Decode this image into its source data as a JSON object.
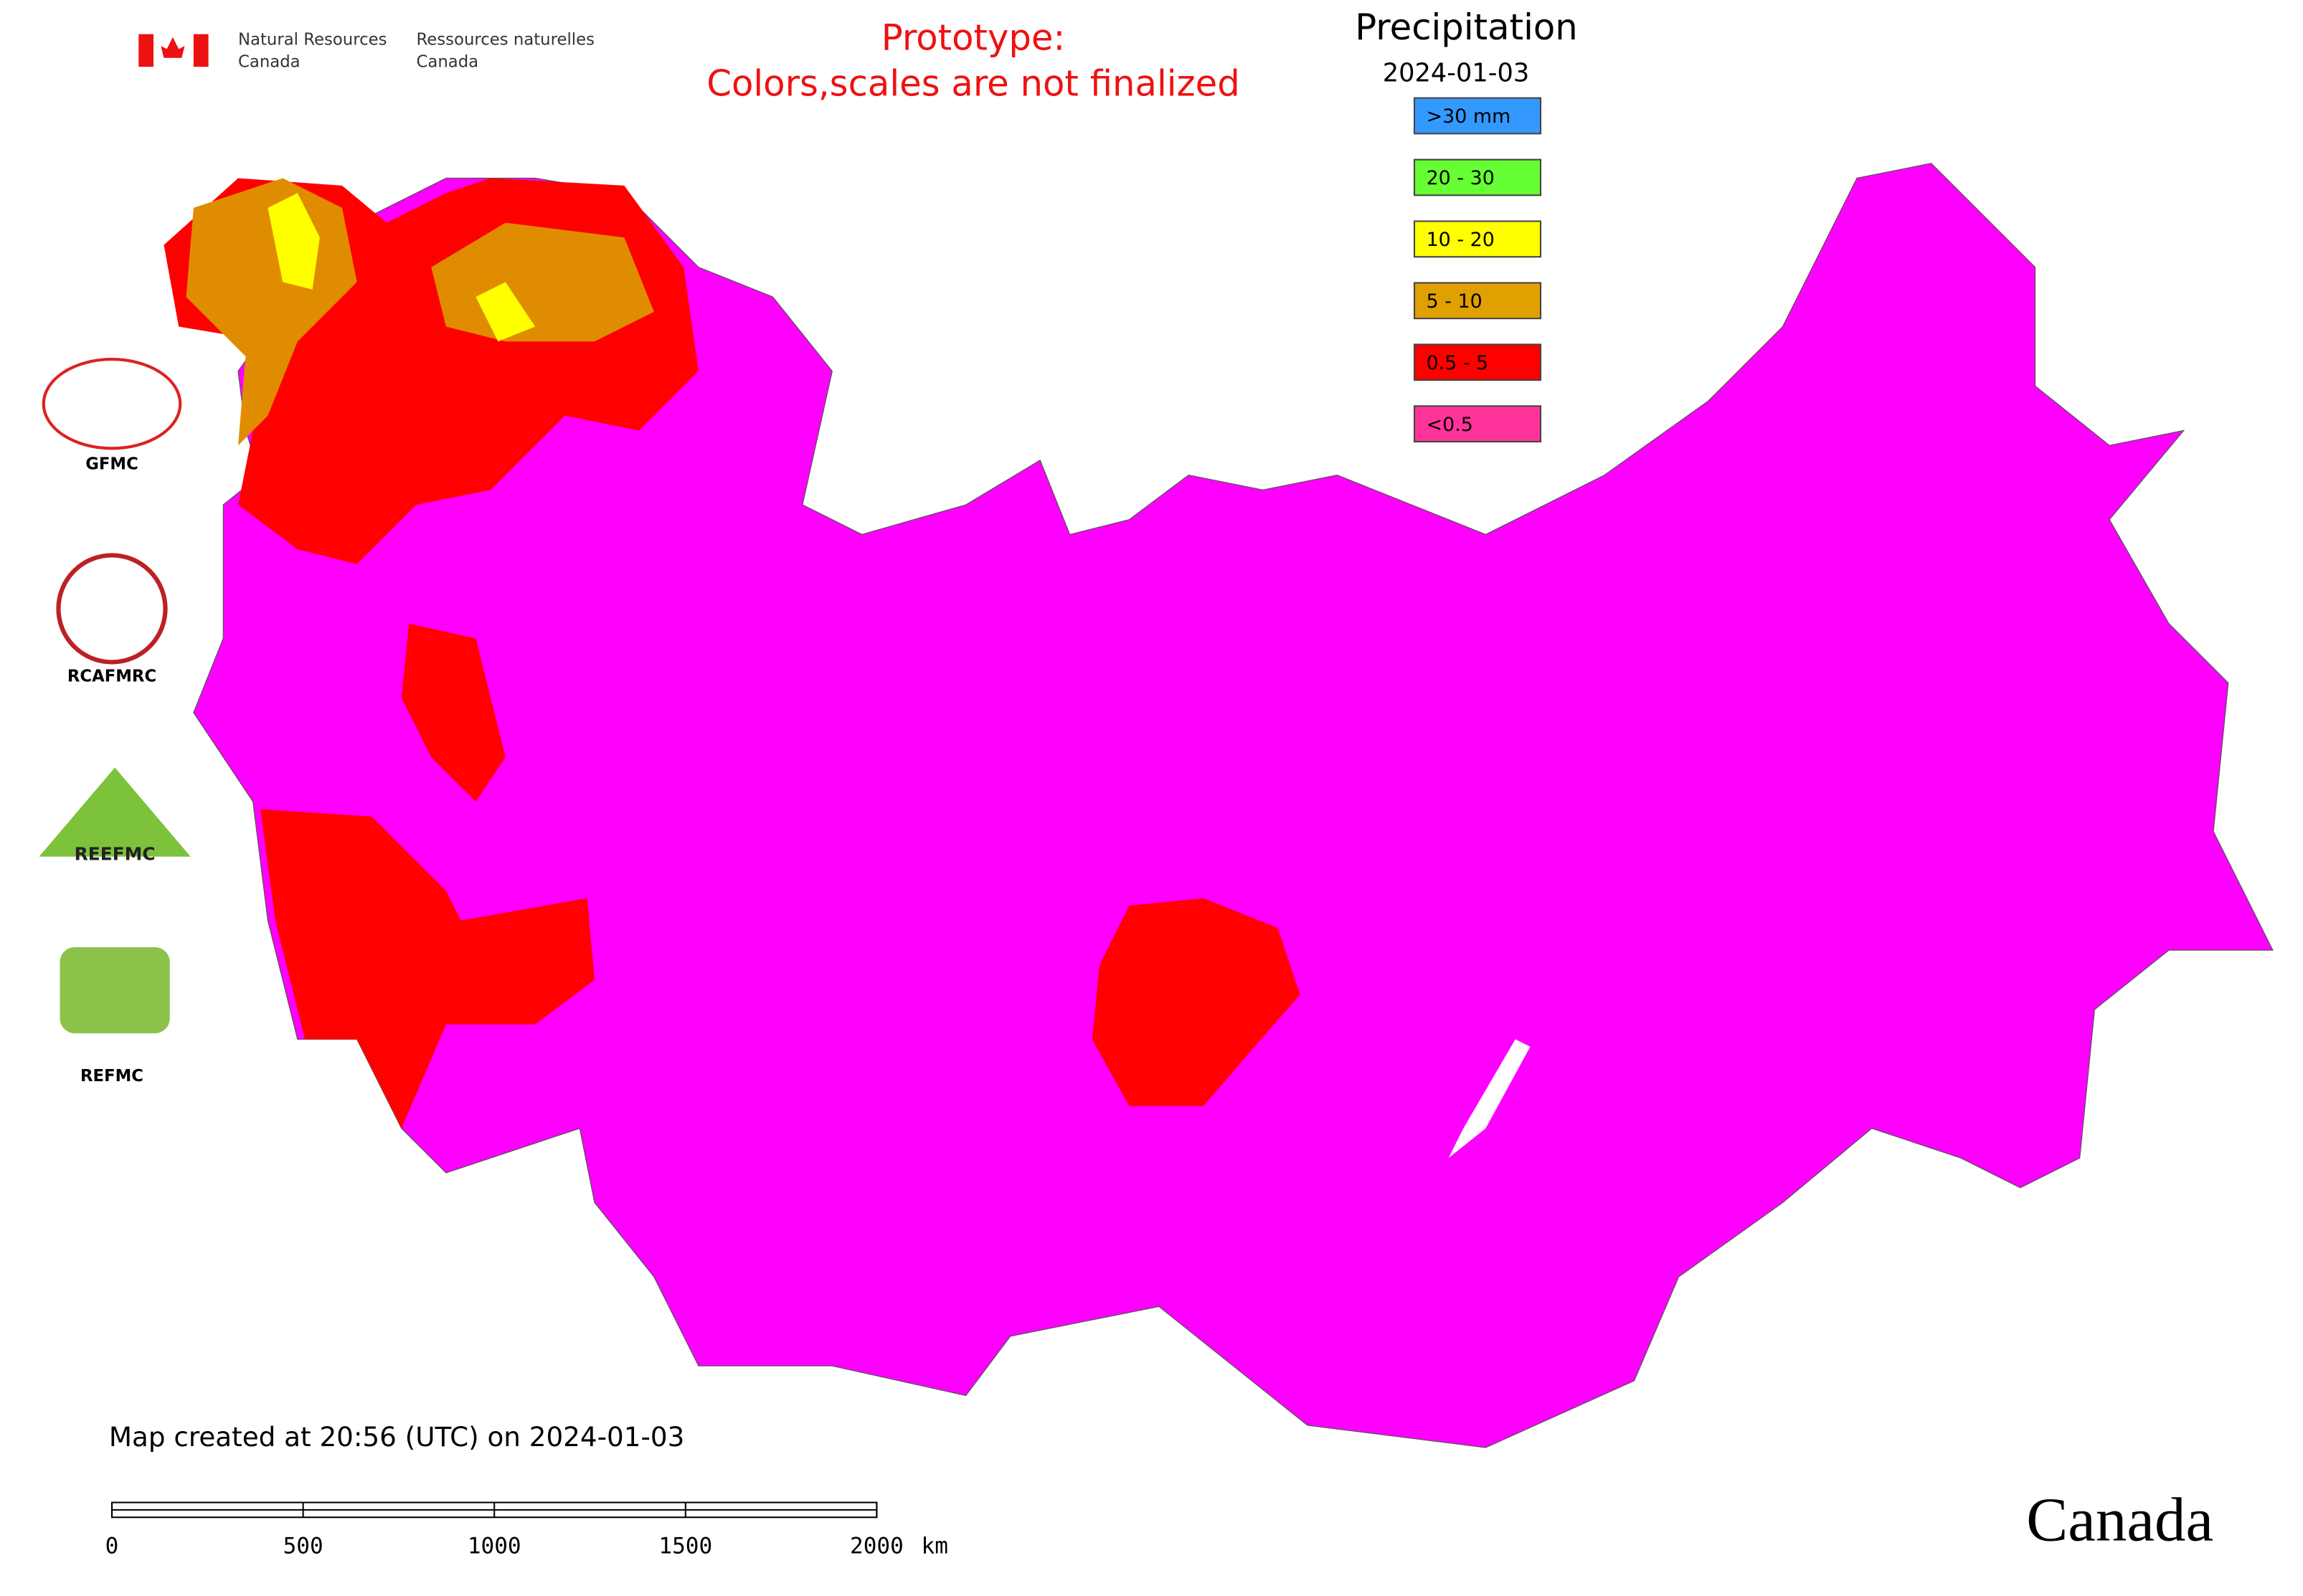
{
  "header": {
    "agency_en": [
      "Natural Resources",
      "Canada"
    ],
    "agency_fr": [
      "Ressources naturelles",
      "Canada"
    ],
    "notice": [
      "Prototype:",
      "Colors,scales are not finalized"
    ]
  },
  "legend": {
    "title": "Precipitation",
    "date": "2024-01-03",
    "items": [
      {
        "label": ">30 mm",
        "color": "#3399ff"
      },
      {
        "label": "20 - 30",
        "color": "#66ff33"
      },
      {
        "label": "10 - 20",
        "color": "#ffff00"
      },
      {
        "label": "5 - 10",
        "color": "#e0a000"
      },
      {
        "label": "0.5 - 5",
        "color": "#ff0000"
      },
      {
        "label": "<0.5",
        "color": "#ff3399"
      }
    ]
  },
  "logos": [
    {
      "label": "GFMC"
    },
    {
      "label": "RCAFMRC"
    },
    {
      "label": "REEFMC"
    },
    {
      "label": "REFMC"
    }
  ],
  "footer": {
    "created": "Map created at 20:56 (UTC) on 2024-01-03",
    "wordmark": "Canada"
  },
  "scale_bar": {
    "ticks": [
      0,
      500,
      1000,
      1500,
      2000
    ],
    "unit": "km"
  }
}
